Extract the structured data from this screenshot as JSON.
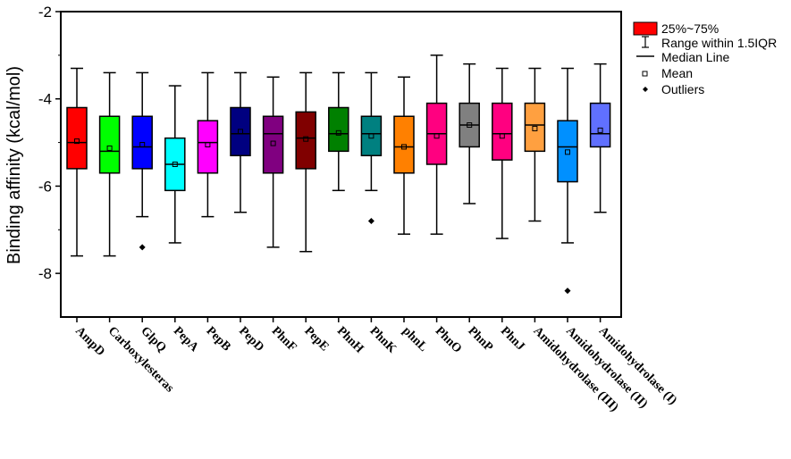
{
  "chart_data": {
    "type": "box",
    "title": "",
    "xlabel": "",
    "ylabel": "Binding affinity (kcal/mol)",
    "ylim": [
      -9,
      -2
    ],
    "yticks": [
      "-2",
      "-4",
      "-6",
      "-8"
    ],
    "ytick_values": [
      -2,
      -4,
      -6,
      -8
    ],
    "grid": false,
    "legend_position": "top-right",
    "legend": {
      "box": "25%~75%",
      "range": "Range within 1.5IQR",
      "median": "Median Line",
      "mean": "Mean",
      "outliers": "Outliers"
    },
    "categories": [
      "AmpD",
      "Carboxylesteras",
      "GlpQ",
      "PepA",
      "PepB",
      "PepD",
      "PhnF",
      "PepE",
      "PhnH",
      "PhnK",
      "phnL",
      "PhnO",
      "PhnP",
      "PhnJ",
      "Amidohydrolase (III)",
      "Amidohydrolase (II)",
      "Amidohydrolase (I)"
    ],
    "colors": [
      "#ff0000",
      "#00ff00",
      "#0000ff",
      "#00ffff",
      "#ff00ff",
      "#000080",
      "#800080",
      "#800000",
      "#008000",
      "#008080",
      "#ff8000",
      "#ff0080",
      "#808080",
      "#ff0080",
      "#ffa040",
      "#0090ff",
      "#6070ff"
    ],
    "series": [
      {
        "whisker_low": -7.6,
        "q1": -5.6,
        "median": -5.0,
        "q3": -4.2,
        "whisker_high": -3.3,
        "mean": -4.97,
        "outliers": []
      },
      {
        "whisker_low": -7.6,
        "q1": -5.7,
        "median": -5.2,
        "q3": -4.4,
        "whisker_high": -3.4,
        "mean": -5.13,
        "outliers": []
      },
      {
        "whisker_low": -6.7,
        "q1": -5.6,
        "median": -5.1,
        "q3": -4.4,
        "whisker_high": -3.4,
        "mean": -5.05,
        "outliers": [
          -7.4
        ]
      },
      {
        "whisker_low": -7.3,
        "q1": -6.1,
        "median": -5.5,
        "q3": -4.9,
        "whisker_high": -3.7,
        "mean": -5.5,
        "outliers": []
      },
      {
        "whisker_low": -6.7,
        "q1": -5.7,
        "median": -5.0,
        "q3": -4.5,
        "whisker_high": -3.4,
        "mean": -5.05,
        "outliers": []
      },
      {
        "whisker_low": -6.6,
        "q1": -5.3,
        "median": -4.8,
        "q3": -4.2,
        "whisker_high": -3.4,
        "mean": -4.75,
        "outliers": []
      },
      {
        "whisker_low": -7.4,
        "q1": -5.7,
        "median": -4.8,
        "q3": -4.4,
        "whisker_high": -3.5,
        "mean": -5.02,
        "outliers": []
      },
      {
        "whisker_low": -7.5,
        "q1": -5.6,
        "median": -4.9,
        "q3": -4.3,
        "whisker_high": -3.4,
        "mean": -4.92,
        "outliers": []
      },
      {
        "whisker_low": -6.1,
        "q1": -5.2,
        "median": -4.8,
        "q3": -4.2,
        "whisker_high": -3.4,
        "mean": -4.78,
        "outliers": []
      },
      {
        "whisker_low": -6.1,
        "q1": -5.3,
        "median": -4.8,
        "q3": -4.4,
        "whisker_high": -3.4,
        "mean": -4.85,
        "outliers": [
          -6.8
        ]
      },
      {
        "whisker_low": -7.1,
        "q1": -5.7,
        "median": -5.1,
        "q3": -4.4,
        "whisker_high": -3.5,
        "mean": -5.1,
        "outliers": []
      },
      {
        "whisker_low": -7.1,
        "q1": -5.5,
        "median": -4.8,
        "q3": -4.1,
        "whisker_high": -3.0,
        "mean": -4.85,
        "outliers": []
      },
      {
        "whisker_low": -6.4,
        "q1": -5.1,
        "median": -4.6,
        "q3": -4.1,
        "whisker_high": -3.2,
        "mean": -4.6,
        "outliers": []
      },
      {
        "whisker_low": -7.2,
        "q1": -5.4,
        "median": -4.8,
        "q3": -4.1,
        "whisker_high": -3.3,
        "mean": -4.85,
        "outliers": []
      },
      {
        "whisker_low": -6.8,
        "q1": -5.2,
        "median": -4.6,
        "q3": -4.1,
        "whisker_high": -3.3,
        "mean": -4.68,
        "outliers": []
      },
      {
        "whisker_low": -7.3,
        "q1": -5.9,
        "median": -5.1,
        "q3": -4.5,
        "whisker_high": -3.3,
        "mean": -5.22,
        "outliers": [
          -8.4
        ]
      },
      {
        "whisker_low": -6.6,
        "q1": -5.1,
        "median": -4.8,
        "q3": -4.1,
        "whisker_high": -3.2,
        "mean": -4.72,
        "outliers": []
      }
    ]
  }
}
